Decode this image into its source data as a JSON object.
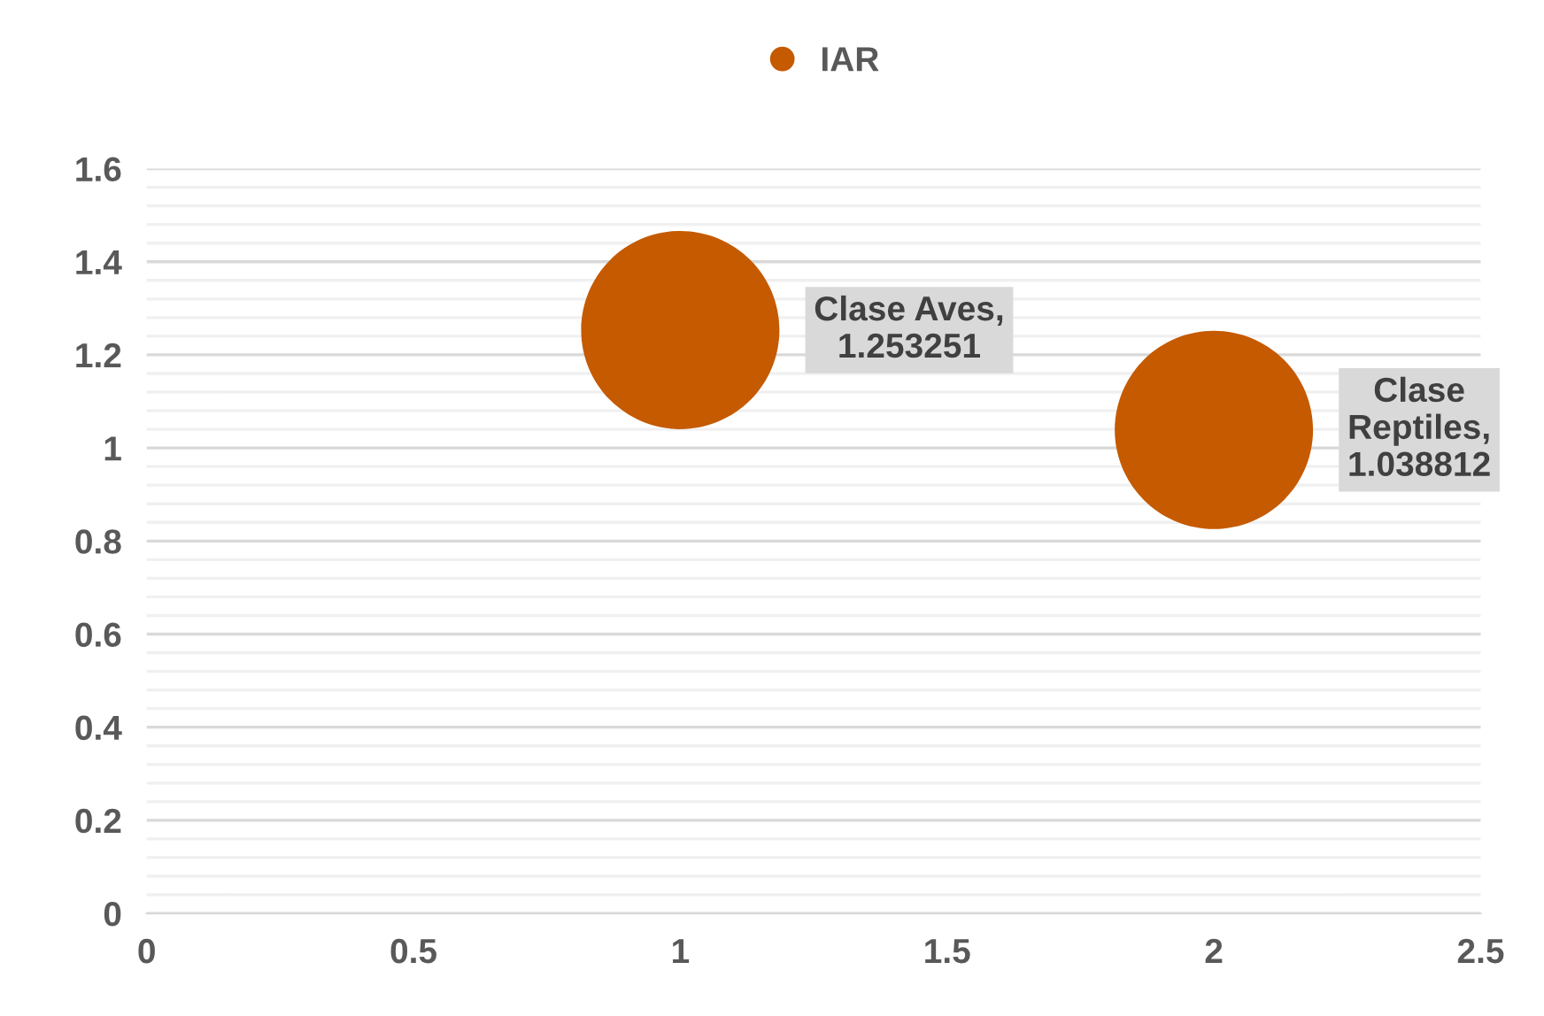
{
  "chart_data": {
    "type": "bubble",
    "x": [
      1,
      2
    ],
    "series": [
      {
        "name": "IAR",
        "color": "#c55a00",
        "values": [
          1.253251,
          1.038812
        ],
        "sizes": [
          1,
          1
        ],
        "value_labels": [
          "Clase Aves,\n1.253251",
          "Clase\nReptiles,\n1.038812"
        ]
      }
    ],
    "xlim": [
      0,
      2.5
    ],
    "xticks": [
      0,
      0.5,
      1,
      1.5,
      2,
      2.5
    ],
    "ylim": [
      0,
      1.6
    ],
    "yticks": [
      0,
      0.2,
      0.4,
      0.6,
      0.8,
      1,
      1.2,
      1.4,
      1.6
    ],
    "grid": "y",
    "legend": "top"
  }
}
